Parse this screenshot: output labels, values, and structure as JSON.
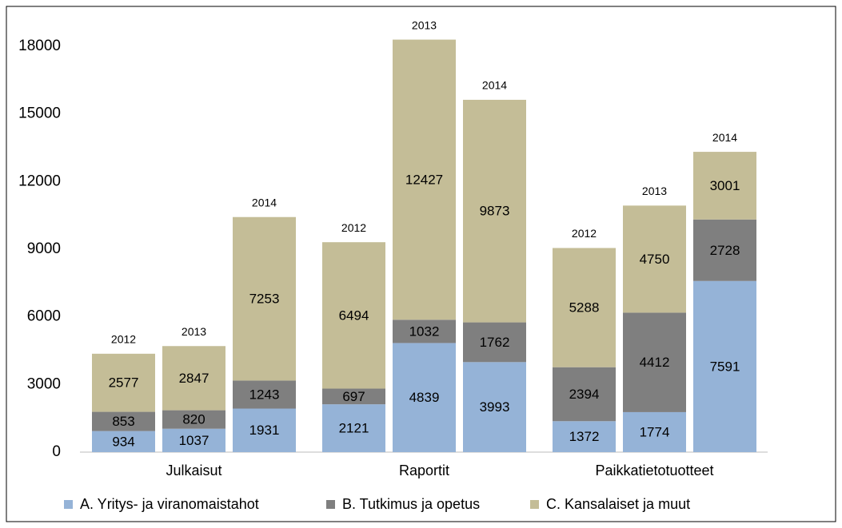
{
  "chart_data": {
    "type": "grouped_stacked_bar",
    "groups": [
      "Julkaisut",
      "Raportit",
      "Paikkatietotuotteet"
    ],
    "categories": [
      "2012",
      "2013",
      "2014",
      "2012",
      "2013",
      "2014",
      "2012",
      "2013",
      "2014"
    ],
    "series": [
      {
        "name": "A. Yritys- ja viranomaistahot",
        "color": "#95b3d7",
        "values": [
          934,
          1037,
          1931,
          2121,
          4839,
          3993,
          1372,
          1774,
          7591
        ]
      },
      {
        "name": "B. Tutkimus ja opetus",
        "color": "#7f7f7f",
        "values": [
          853,
          820,
          1243,
          697,
          1032,
          1762,
          2394,
          4412,
          2728
        ]
      },
      {
        "name": "C. Kansalaiset ja muut",
        "color": "#c4bd97",
        "values": [
          2577,
          2847,
          7253,
          6494,
          12427,
          9873,
          5288,
          4750,
          3001
        ]
      }
    ],
    "ylim": [
      0,
      18000
    ],
    "yticks": [
      0,
      3000,
      6000,
      9000,
      12000,
      15000,
      18000
    ],
    "grid": false,
    "legend": "bottom"
  }
}
